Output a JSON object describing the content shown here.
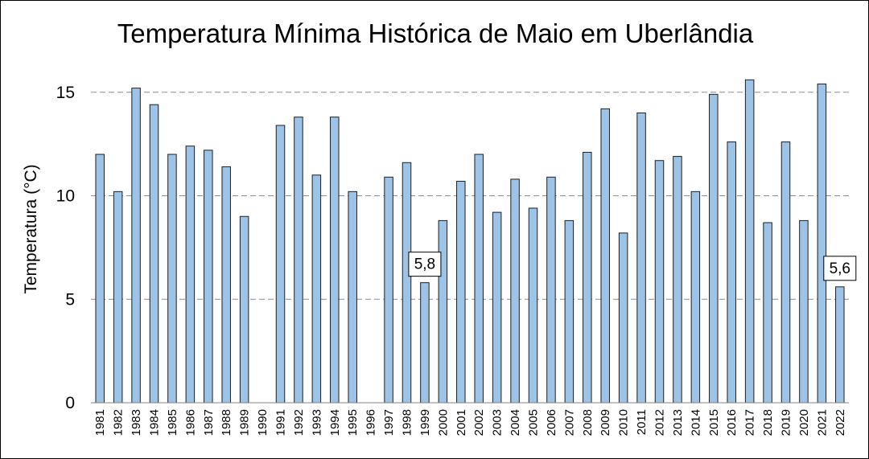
{
  "chart_data": {
    "type": "bar",
    "title": "Temperatura Mínima Histórica de Maio em Uberlândia",
    "xlabel": "",
    "ylabel": "Temperatura (°C)",
    "ylim": [
      0,
      16
    ],
    "yticks": [
      0,
      5,
      10,
      15
    ],
    "ytick_labels": [
      "0",
      "5",
      "10",
      "15"
    ],
    "grid": true,
    "legend": "none",
    "bar_color": "#9dc3e6",
    "bar_edge_color": "#1f1f1f",
    "categories": [
      "1981",
      "1982",
      "1983",
      "1984",
      "1985",
      "1986",
      "1987",
      "1988",
      "1989",
      "1990",
      "1991",
      "1992",
      "1993",
      "1994",
      "1995",
      "1996",
      "1997",
      "1998",
      "1999",
      "2000",
      "2001",
      "2002",
      "2003",
      "2004",
      "2005",
      "2006",
      "2007",
      "2008",
      "2009",
      "2010",
      "2011",
      "2012",
      "2013",
      "2014",
      "2015",
      "2016",
      "2017",
      "2018",
      "2019",
      "2020",
      "2021",
      "2022"
    ],
    "values": [
      12.0,
      10.2,
      15.2,
      14.4,
      12.0,
      12.4,
      12.2,
      11.4,
      9.0,
      null,
      13.4,
      13.8,
      11.0,
      13.8,
      10.2,
      null,
      10.9,
      11.6,
      5.8,
      8.8,
      10.7,
      12.0,
      9.2,
      10.8,
      9.4,
      10.9,
      8.8,
      12.1,
      14.2,
      8.2,
      14.0,
      11.7,
      11.9,
      10.2,
      14.9,
      12.6,
      15.6,
      8.7,
      12.6,
      8.8,
      15.4,
      5.6
    ],
    "annotations": [
      {
        "category": "1999",
        "text": "5,8"
      },
      {
        "category": "2022",
        "text": "5,6"
      }
    ]
  }
}
